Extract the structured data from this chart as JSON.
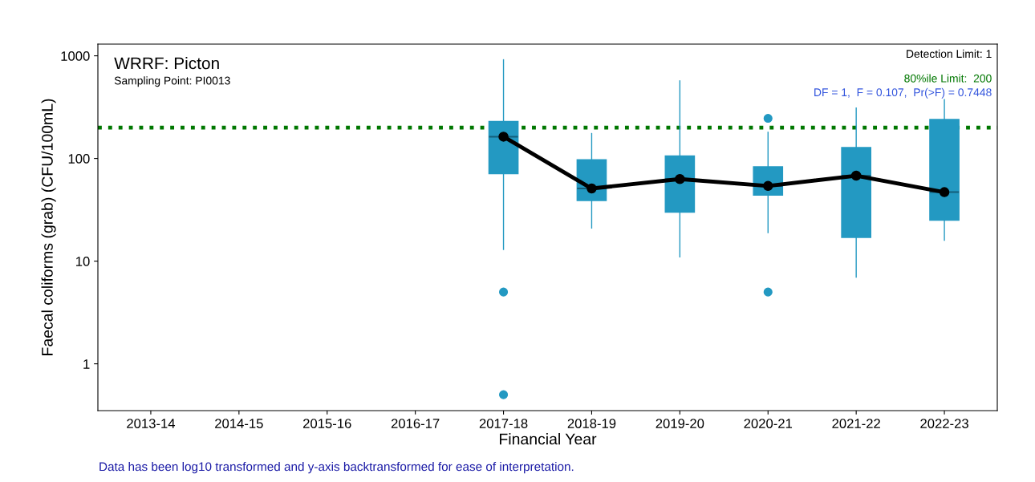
{
  "chart_data": {
    "type": "box",
    "title": "WRRF: Picton",
    "subtitle": "Sampling Point: PI0013",
    "xlabel": "Financial Year",
    "ylabel": "Faecal coliforms (grab) (CFU/100mL)",
    "categories": [
      "2013-14",
      "2014-15",
      "2015-16",
      "2016-17",
      "2017-18",
      "2018-19",
      "2019-20",
      "2020-21",
      "2021-22",
      "2022-23"
    ],
    "log": true,
    "ylim": [
      0.35,
      1300
    ],
    "yticks": [
      1,
      10,
      100,
      1000
    ],
    "grid": false,
    "series": [
      {
        "color": "#2399c2",
        "boxes": [
          null,
          null,
          null,
          null,
          {
            "low": 13,
            "q1": 71,
            "median": 163,
            "q3": 229,
            "high": 915,
            "outliers": [
              5,
              0.5
            ]
          },
          {
            "low": 21,
            "q1": 39,
            "median": 51,
            "q3": 97,
            "high": 175
          },
          {
            "low": 11,
            "q1": 30,
            "median": 63,
            "q3": 106,
            "high": 570
          },
          {
            "low": 19,
            "q1": 44,
            "median": 54,
            "q3": 83,
            "high": 180,
            "outliers": [
              246,
              5
            ]
          },
          {
            "low": 7,
            "q1": 17,
            "median": 68,
            "q3": 128,
            "high": 310
          },
          {
            "low": 16,
            "q1": 25,
            "median": 47,
            "q3": 240,
            "high": 470
          }
        ]
      },
      {
        "type": "line",
        "color": "#000000",
        "marker": "circle",
        "values": [
          null,
          null,
          null,
          null,
          163,
          51,
          63,
          54,
          68,
          47
        ]
      }
    ],
    "ref_lines": [
      {
        "axis": "y",
        "value": 200,
        "label": "80%ile Limit:  200",
        "color": "#007700",
        "line_style": "dotted"
      }
    ],
    "annotations": [
      "Detection Limit: 1",
      "DF = 1,  F = 0.107,  Pr(>F) = 0.7448",
      "Data has been log10 transformed and y-axis backtransformed for ease of interpretation."
    ]
  }
}
